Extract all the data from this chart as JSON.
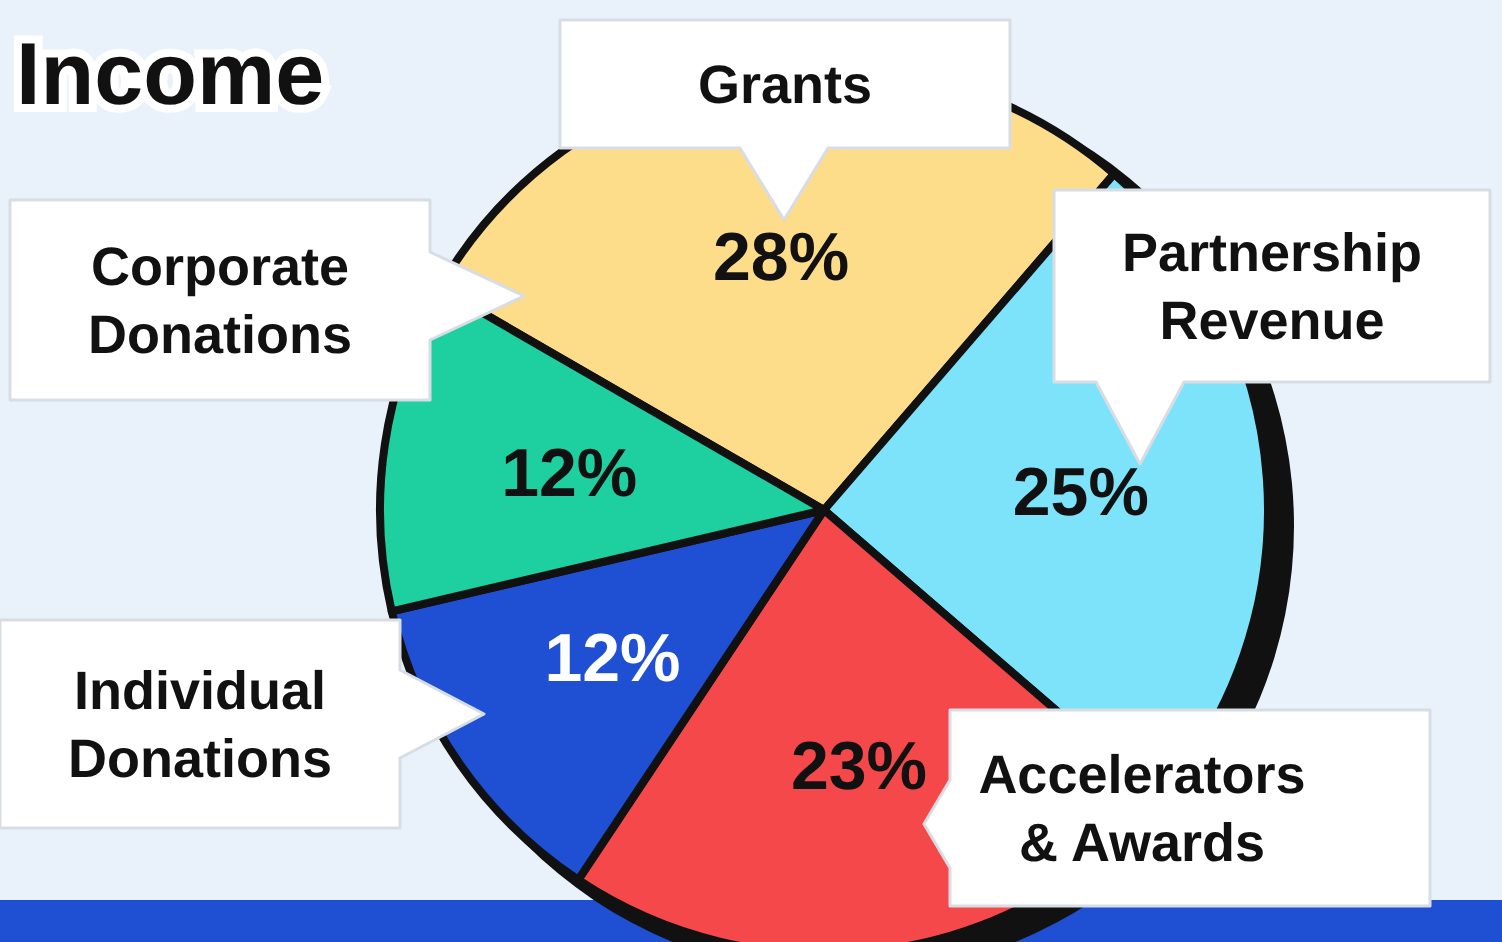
{
  "chart_data": {
    "type": "pie",
    "title": "Income",
    "categories": [
      "Grants",
      "Partnership Revenue",
      "Accelerators & Awards",
      "Individual Donations",
      "Corporate Donations"
    ],
    "values": [
      28,
      25,
      23,
      12,
      12
    ],
    "colors": [
      "#fddc8a",
      "#7de3fb",
      "#f5484a",
      "#1f50d4",
      "#1ecfa0"
    ],
    "value_labels": [
      "28%",
      "25%",
      "23%",
      "12%",
      "12%"
    ]
  }
}
